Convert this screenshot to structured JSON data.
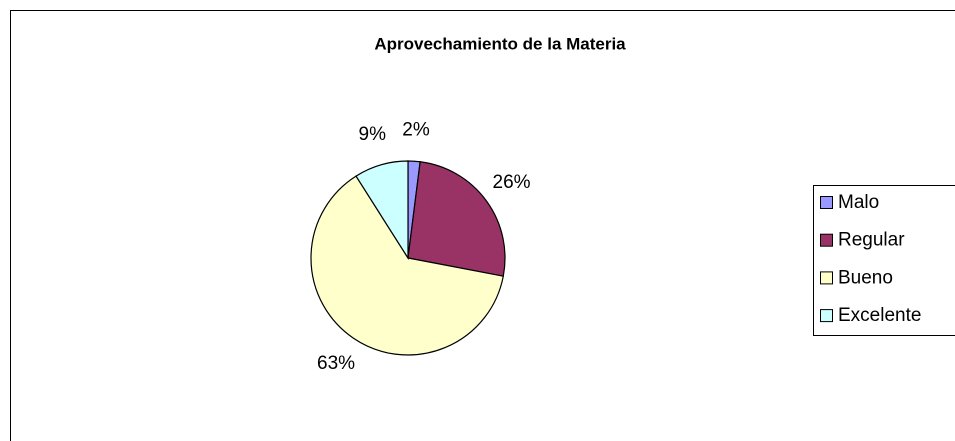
{
  "chart_data": {
    "type": "pie",
    "title": "Aprovechamiento de la Materia",
    "categories": [
      "Malo",
      "Regular",
      "Bueno",
      "Excelente"
    ],
    "values": [
      2,
      26,
      63,
      9
    ],
    "value_labels": [
      "2%",
      "26%",
      "63%",
      "9%"
    ],
    "colors": [
      "#9999ff",
      "#993366",
      "#ffffcc",
      "#ccffff"
    ],
    "legend": "right"
  }
}
